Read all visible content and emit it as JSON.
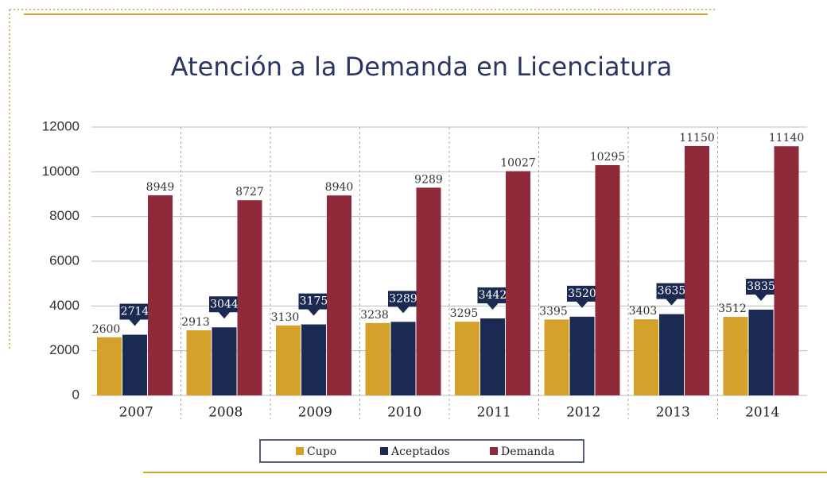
{
  "chart_data": {
    "type": "bar",
    "title": "Atención a la Demanda en Licenciatura",
    "categories": [
      "2007",
      "2008",
      "2009",
      "2010",
      "2011",
      "2012",
      "2013",
      "2014"
    ],
    "series": [
      {
        "name": "Cupo",
        "color": "#d4a12a",
        "values": [
          2600,
          2913,
          3130,
          3238,
          3295,
          3395,
          3403,
          3512
        ]
      },
      {
        "name": "Aceptados",
        "color": "#1b2a52",
        "values": [
          2714,
          3044,
          3175,
          3289,
          3442,
          3520,
          3635,
          3835
        ]
      },
      {
        "name": "Demanda",
        "color": "#8e2a3a",
        "values": [
          8949,
          8727,
          8940,
          9289,
          10027,
          10295,
          11150,
          11140
        ]
      }
    ],
    "ylim": [
      0,
      12000
    ],
    "yticks": [
      0,
      2000,
      4000,
      6000,
      8000,
      10000,
      12000
    ],
    "grid": true,
    "legend": "bottom"
  }
}
